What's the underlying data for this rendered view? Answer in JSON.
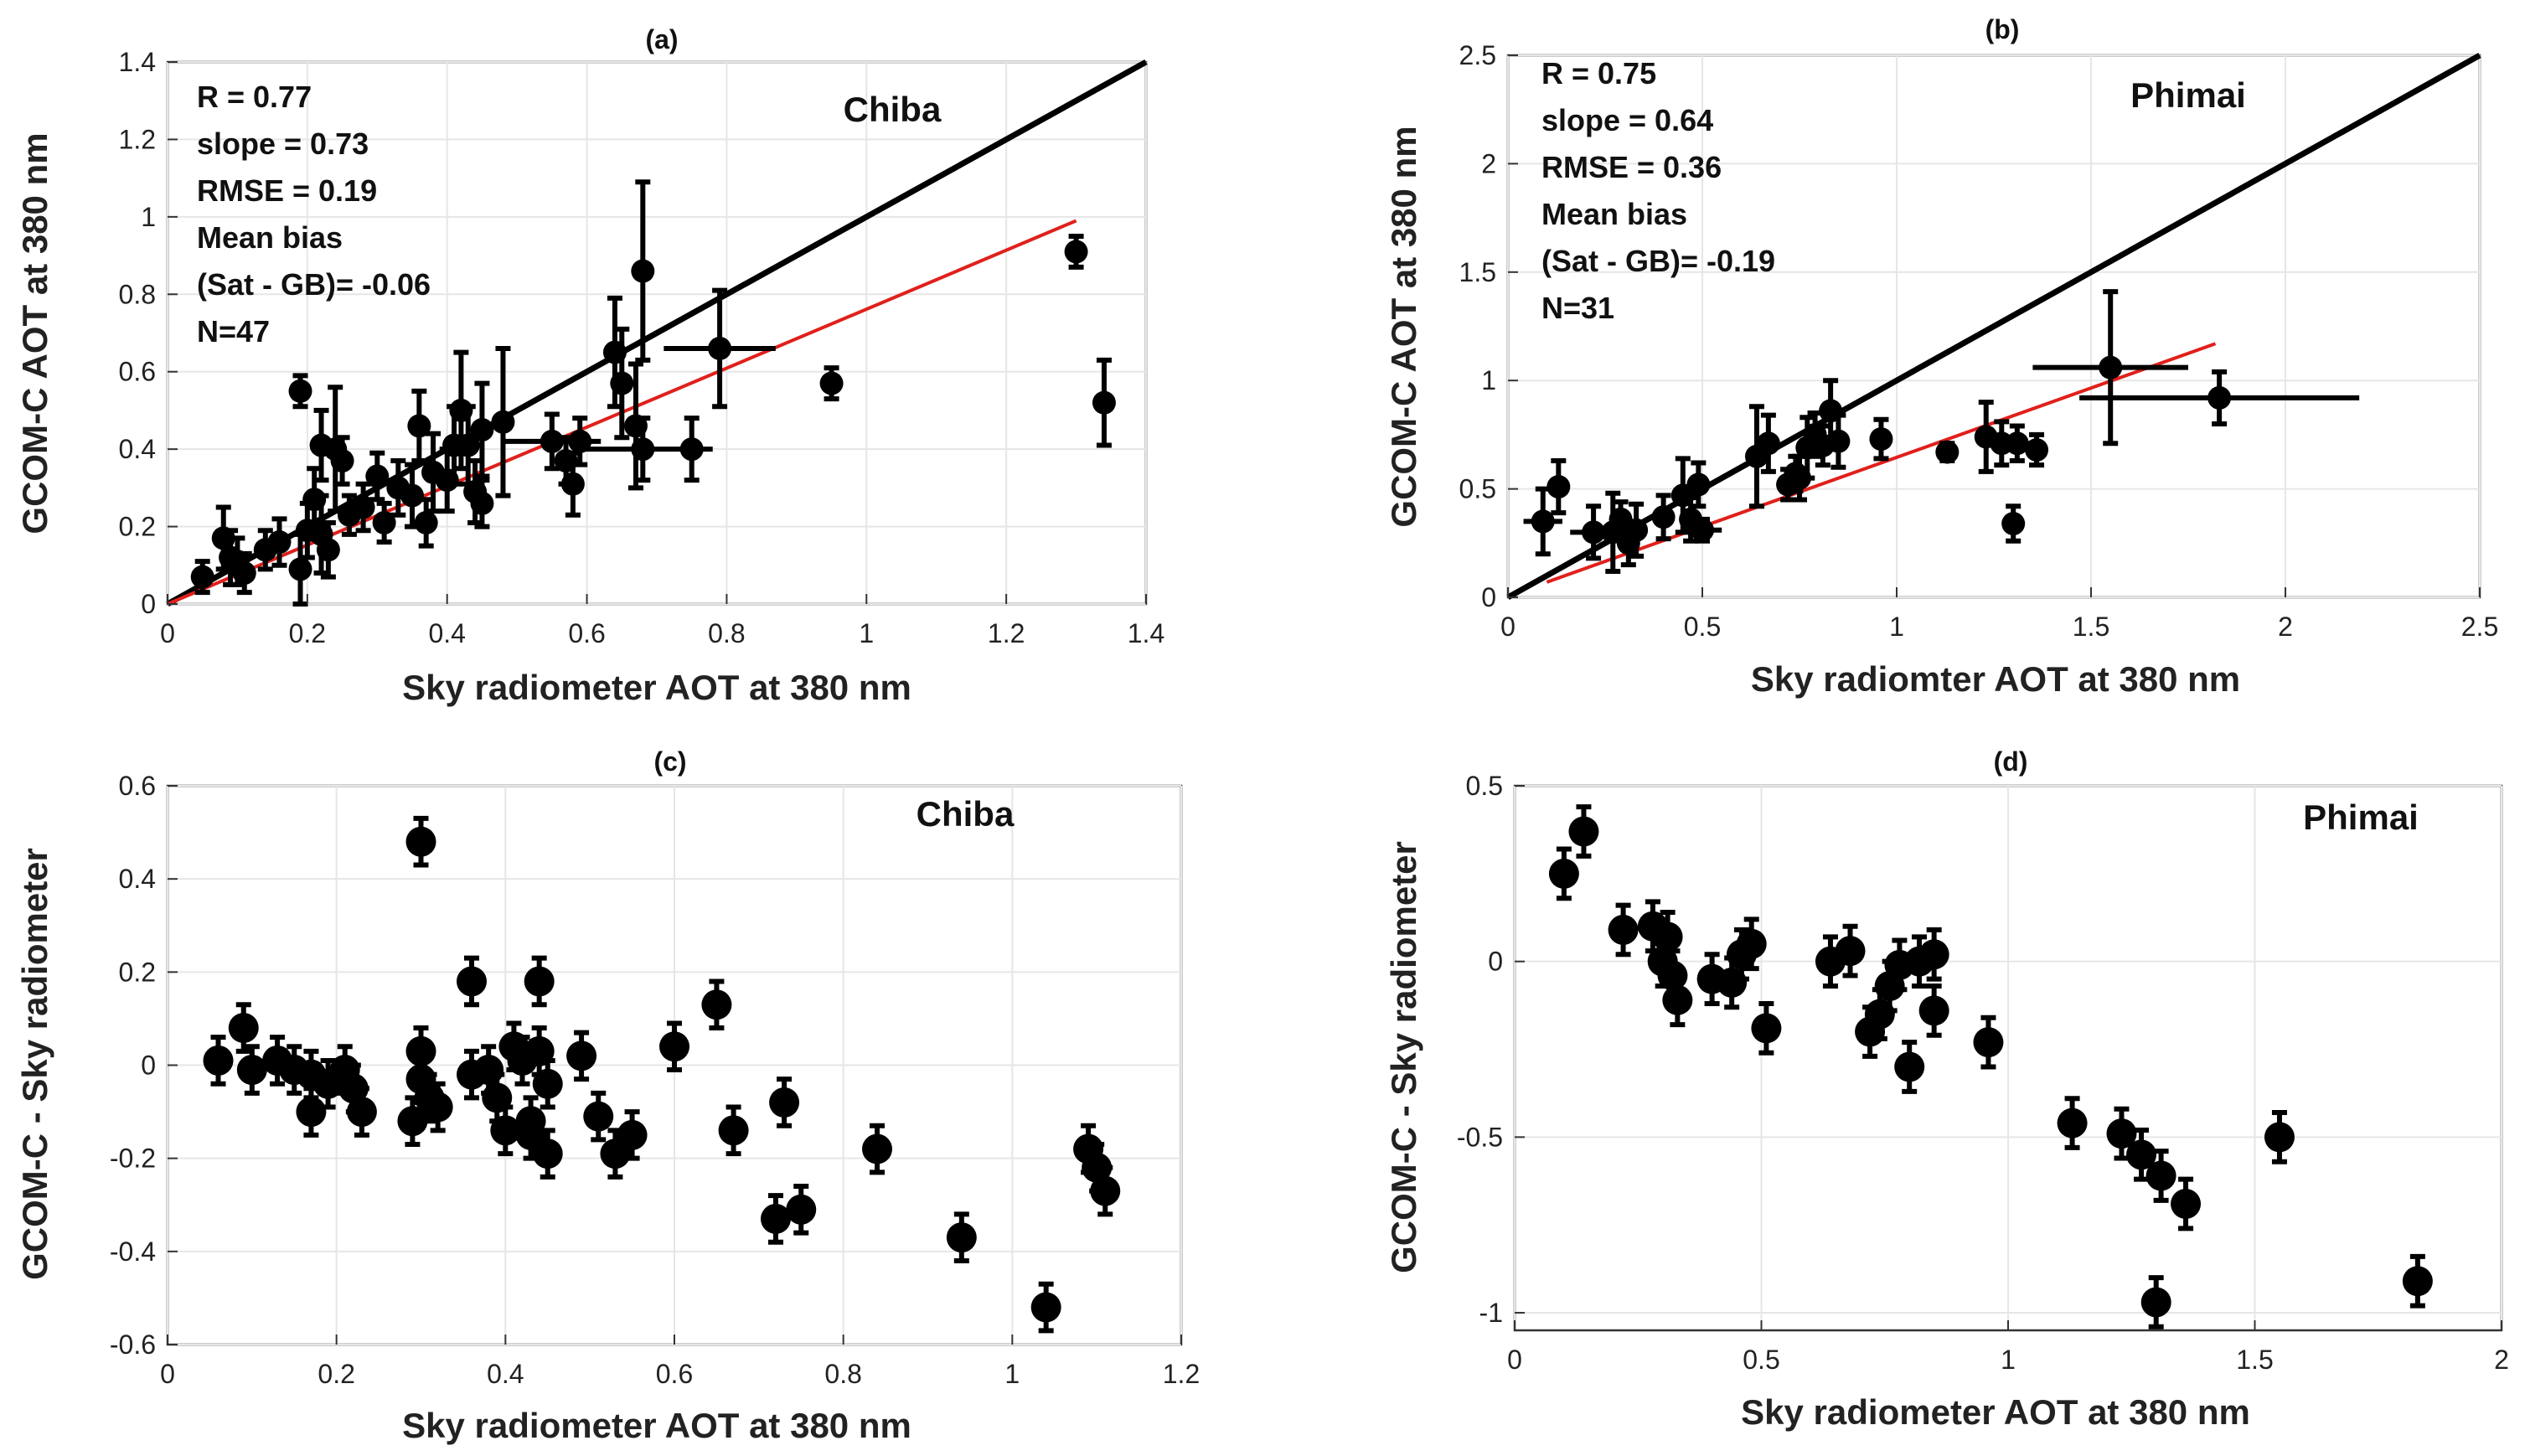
{
  "chart_data": [
    {
      "id": "a",
      "type": "scatter",
      "title": "(a)",
      "site": "Chiba",
      "xlabel": "Sky radiometer AOT at 380 nm",
      "ylabel": "GCOM-C AOT at 380 nm",
      "xlim": [
        0,
        1.4
      ],
      "ylim": [
        0,
        1.4
      ],
      "xticks": [
        0,
        0.2,
        0.4,
        0.6,
        0.8,
        1,
        1.2,
        1.4
      ],
      "yticks": [
        0,
        0.2,
        0.4,
        0.6,
        0.8,
        1,
        1.2,
        1.4
      ],
      "stats": [
        "R = 0.77",
        "slope = 0.73",
        "RMSE = 0.19",
        "Mean bias",
        "(Sat - GB)= -0.06",
        "N=47"
      ],
      "one_to_one": {
        "from": [
          0,
          0
        ],
        "to": [
          1.4,
          1.4
        ],
        "color": "#000000"
      },
      "fit_line": {
        "from": [
          0,
          0
        ],
        "to": [
          1.3,
          0.99
        ],
        "color": "#e0201b"
      },
      "points": [
        {
          "x": 0.05,
          "y": 0.07,
          "ey": 0.04
        },
        {
          "x": 0.08,
          "y": 0.17,
          "ey": 0.08
        },
        {
          "x": 0.1,
          "y": 0.11,
          "ey": 0.06
        },
        {
          "x": 0.11,
          "y": 0.08,
          "ey": 0.05
        },
        {
          "x": 0.14,
          "y": 0.14,
          "ey": 0.05
        },
        {
          "x": 0.16,
          "y": 0.16,
          "ey": 0.06
        },
        {
          "x": 0.19,
          "y": 0.55,
          "ey": 0.04
        },
        {
          "x": 0.19,
          "y": 0.09,
          "ey": 0.09
        },
        {
          "x": 0.2,
          "y": 0.19,
          "ey": 0.07
        },
        {
          "x": 0.21,
          "y": 0.27,
          "ey": 0.08
        },
        {
          "x": 0.22,
          "y": 0.41,
          "ey": 0.09
        },
        {
          "x": 0.23,
          "y": 0.14,
          "ey": 0.07
        },
        {
          "x": 0.24,
          "y": 0.4,
          "ey": 0.16
        },
        {
          "x": 0.25,
          "y": 0.37,
          "ey": 0.06
        },
        {
          "x": 0.26,
          "y": 0.23,
          "ey": 0.05
        },
        {
          "x": 0.28,
          "y": 0.25,
          "ey": 0.06
        },
        {
          "x": 0.31,
          "y": 0.21,
          "ey": 0.05
        },
        {
          "x": 0.33,
          "y": 0.3,
          "ey": 0.07
        },
        {
          "x": 0.35,
          "y": 0.28,
          "ey": 0.08
        },
        {
          "x": 0.36,
          "y": 0.46,
          "ey": 0.09
        },
        {
          "x": 0.37,
          "y": 0.21,
          "ey": 0.06
        },
        {
          "x": 0.38,
          "y": 0.34,
          "ey": 0.1
        },
        {
          "x": 0.4,
          "y": 0.32,
          "ey": 0.08
        },
        {
          "x": 0.41,
          "y": 0.41,
          "ey": 0.1
        },
        {
          "x": 0.42,
          "y": 0.5,
          "ey": 0.15
        },
        {
          "x": 0.43,
          "y": 0.41,
          "ey": 0.1
        },
        {
          "x": 0.44,
          "y": 0.29,
          "ey": 0.08
        },
        {
          "x": 0.45,
          "y": 0.26,
          "ey": 0.06
        },
        {
          "x": 0.45,
          "y": 0.45,
          "ey": 0.12
        },
        {
          "x": 0.48,
          "y": 0.47,
          "ey": 0.19
        },
        {
          "x": 0.55,
          "y": 0.42,
          "ey": 0.07,
          "ex": 0.07
        },
        {
          "x": 0.57,
          "y": 0.37,
          "ey": 0.06
        },
        {
          "x": 0.58,
          "y": 0.31,
          "ey": 0.08
        },
        {
          "x": 0.59,
          "y": 0.42,
          "ey": 0.06
        },
        {
          "x": 0.64,
          "y": 0.65,
          "ey": 0.14
        },
        {
          "x": 0.65,
          "y": 0.57,
          "ey": 0.14
        },
        {
          "x": 0.67,
          "y": 0.46,
          "ey": 0.16
        },
        {
          "x": 0.68,
          "y": 0.86,
          "ey": 0.23
        },
        {
          "x": 0.79,
          "y": 0.66,
          "ey": 0.15,
          "ex": 0.08
        },
        {
          "x": 0.75,
          "y": 0.4,
          "ey": 0.08
        },
        {
          "x": 0.95,
          "y": 0.57,
          "ey": 0.04
        },
        {
          "x": 1.3,
          "y": 0.91,
          "ey": 0.04
        },
        {
          "x": 1.34,
          "y": 0.52,
          "ey": 0.11
        },
        {
          "x": 0.68,
          "y": 0.4,
          "ey": 0.08,
          "ex": 0.1
        },
        {
          "x": 0.22,
          "y": 0.18,
          "ey": 0.1
        },
        {
          "x": 0.3,
          "y": 0.33,
          "ey": 0.06
        },
        {
          "x": 0.09,
          "y": 0.12,
          "ey": 0.07
        }
      ]
    },
    {
      "id": "b",
      "type": "scatter",
      "title": "(b)",
      "site": "Phimai",
      "xlabel": "Sky radiomter AOT at 380 nm",
      "ylabel": "GCOM-C AOT at 380 nm",
      "xlim": [
        0,
        2.5
      ],
      "ylim": [
        0,
        2.5
      ],
      "xticks": [
        0,
        0.5,
        1,
        1.5,
        2,
        2.5
      ],
      "yticks": [
        0,
        0.5,
        1,
        1.5,
        2,
        2.5
      ],
      "stats": [
        "R = 0.75",
        "slope = 0.64",
        "RMSE = 0.36",
        "Mean bias",
        "(Sat - GB)= -0.19",
        "N=31"
      ],
      "one_to_one": {
        "from": [
          0,
          0
        ],
        "to": [
          2.5,
          2.5
        ],
        "color": "#000000"
      },
      "fit_line": {
        "from": [
          0.1,
          0.07
        ],
        "to": [
          1.82,
          1.17
        ],
        "color": "#e0201b"
      },
      "points": [
        {
          "x": 0.09,
          "y": 0.35,
          "ey": 0.15,
          "ex": 0.05
        },
        {
          "x": 0.13,
          "y": 0.51,
          "ey": 0.12
        },
        {
          "x": 0.22,
          "y": 0.3,
          "ey": 0.12,
          "ex": 0.06
        },
        {
          "x": 0.27,
          "y": 0.3,
          "ey": 0.18
        },
        {
          "x": 0.29,
          "y": 0.36,
          "ey": 0.08
        },
        {
          "x": 0.31,
          "y": 0.25,
          "ey": 0.1
        },
        {
          "x": 0.33,
          "y": 0.31,
          "ey": 0.12
        },
        {
          "x": 0.4,
          "y": 0.37,
          "ey": 0.1
        },
        {
          "x": 0.45,
          "y": 0.47,
          "ey": 0.17
        },
        {
          "x": 0.47,
          "y": 0.36,
          "ey": 0.1
        },
        {
          "x": 0.49,
          "y": 0.52,
          "ey": 0.1
        },
        {
          "x": 0.5,
          "y": 0.31,
          "ey": 0.05,
          "ex": 0.05
        },
        {
          "x": 0.64,
          "y": 0.65,
          "ey": 0.23
        },
        {
          "x": 0.67,
          "y": 0.71,
          "ey": 0.13
        },
        {
          "x": 0.72,
          "y": 0.52,
          "ey": 0.07
        },
        {
          "x": 0.74,
          "y": 0.57,
          "ey": 0.08
        },
        {
          "x": 0.75,
          "y": 0.55,
          "ey": 0.1
        },
        {
          "x": 0.77,
          "y": 0.69,
          "ey": 0.14
        },
        {
          "x": 0.79,
          "y": 0.75,
          "ey": 0.1
        },
        {
          "x": 0.81,
          "y": 0.7,
          "ey": 0.09
        },
        {
          "x": 0.83,
          "y": 0.86,
          "ey": 0.14
        },
        {
          "x": 0.85,
          "y": 0.72,
          "ey": 0.12
        },
        {
          "x": 0.96,
          "y": 0.73,
          "ey": 0.09
        },
        {
          "x": 1.13,
          "y": 0.67,
          "ey": 0.04
        },
        {
          "x": 1.23,
          "y": 0.74,
          "ey": 0.16
        },
        {
          "x": 1.27,
          "y": 0.71,
          "ey": 0.1
        },
        {
          "x": 1.3,
          "y": 0.34,
          "ey": 0.08
        },
        {
          "x": 1.31,
          "y": 0.71,
          "ey": 0.08
        },
        {
          "x": 1.36,
          "y": 0.68,
          "ey": 0.07
        },
        {
          "x": 1.55,
          "y": 1.06,
          "ey": 0.35,
          "ex": 0.2
        },
        {
          "x": 1.83,
          "y": 0.92,
          "ey": 0.12,
          "ex": 0.36
        }
      ]
    },
    {
      "id": "c",
      "type": "scatter",
      "title": "(c)",
      "site": "Chiba",
      "xlabel": "Sky radiometer AOT at 380 nm",
      "ylabel": "GCOM-C - Sky radiometer",
      "xlim": [
        0,
        1.2
      ],
      "ylim": [
        -0.6,
        0.6
      ],
      "xticks": [
        0,
        0.2,
        0.4,
        0.6,
        0.8,
        1,
        1.2
      ],
      "yticks": [
        -0.6,
        -0.4,
        -0.2,
        0,
        0.2,
        0.4,
        0.6
      ],
      "points": [
        {
          "x": 0.06,
          "y": 0.01
        },
        {
          "x": 0.09,
          "y": 0.08
        },
        {
          "x": 0.1,
          "y": -0.01
        },
        {
          "x": 0.13,
          "y": 0.01
        },
        {
          "x": 0.15,
          "y": -0.01
        },
        {
          "x": 0.17,
          "y": -0.02
        },
        {
          "x": 0.17,
          "y": -0.1
        },
        {
          "x": 0.19,
          "y": -0.04
        },
        {
          "x": 0.21,
          "y": -0.01
        },
        {
          "x": 0.22,
          "y": -0.05
        },
        {
          "x": 0.23,
          "y": -0.1
        },
        {
          "x": 0.29,
          "y": -0.12
        },
        {
          "x": 0.3,
          "y": 0.03
        },
        {
          "x": 0.3,
          "y": -0.03
        },
        {
          "x": 0.3,
          "y": 0.48
        },
        {
          "x": 0.31,
          "y": -0.07
        },
        {
          "x": 0.32,
          "y": -0.09
        },
        {
          "x": 0.36,
          "y": 0.18
        },
        {
          "x": 0.36,
          "y": -0.02
        },
        {
          "x": 0.38,
          "y": -0.01
        },
        {
          "x": 0.39,
          "y": -0.07
        },
        {
          "x": 0.4,
          "y": -0.14
        },
        {
          "x": 0.41,
          "y": 0.04
        },
        {
          "x": 0.42,
          "y": 0.01
        },
        {
          "x": 0.43,
          "y": -0.15
        },
        {
          "x": 0.43,
          "y": -0.12
        },
        {
          "x": 0.44,
          "y": 0.18
        },
        {
          "x": 0.44,
          "y": 0.03
        },
        {
          "x": 0.45,
          "y": -0.04
        },
        {
          "x": 0.45,
          "y": -0.19
        },
        {
          "x": 0.49,
          "y": 0.02
        },
        {
          "x": 0.51,
          "y": -0.11
        },
        {
          "x": 0.53,
          "y": -0.19
        },
        {
          "x": 0.55,
          "y": -0.15
        },
        {
          "x": 0.6,
          "y": 0.04
        },
        {
          "x": 0.65,
          "y": 0.13
        },
        {
          "x": 0.67,
          "y": -0.14
        },
        {
          "x": 0.72,
          "y": -0.33
        },
        {
          "x": 0.73,
          "y": -0.08
        },
        {
          "x": 0.75,
          "y": -0.31
        },
        {
          "x": 0.84,
          "y": -0.18
        },
        {
          "x": 0.94,
          "y": -0.37
        },
        {
          "x": 1.04,
          "y": -0.52
        },
        {
          "x": 1.09,
          "y": -0.18
        },
        {
          "x": 1.1,
          "y": -0.22
        },
        {
          "x": 1.11,
          "y": -0.27
        }
      ],
      "ey": 0.05
    },
    {
      "id": "d",
      "type": "scatter",
      "title": "(d)",
      "site": "Phimai",
      "xlabel": "Sky radiometer AOT at 380 nm",
      "ylabel": "GCOM-C - Sky radiometer",
      "xlim": [
        0,
        2
      ],
      "ylim": [
        -1.05,
        0.5
      ],
      "xticks": [
        0,
        0.5,
        1,
        1.5,
        2
      ],
      "yticks": [
        -1,
        -0.5,
        0,
        0.5
      ],
      "points": [
        {
          "x": 0.1,
          "y": 0.25
        },
        {
          "x": 0.14,
          "y": 0.37
        },
        {
          "x": 0.22,
          "y": 0.09
        },
        {
          "x": 0.28,
          "y": 0.1
        },
        {
          "x": 0.3,
          "y": 0.0
        },
        {
          "x": 0.31,
          "y": 0.07
        },
        {
          "x": 0.32,
          "y": -0.04
        },
        {
          "x": 0.33,
          "y": -0.11
        },
        {
          "x": 0.4,
          "y": -0.05
        },
        {
          "x": 0.44,
          "y": -0.06
        },
        {
          "x": 0.46,
          "y": 0.02
        },
        {
          "x": 0.48,
          "y": 0.05
        },
        {
          "x": 0.51,
          "y": -0.19
        },
        {
          "x": 0.64,
          "y": 0.0
        },
        {
          "x": 0.68,
          "y": 0.03
        },
        {
          "x": 0.72,
          "y": -0.2
        },
        {
          "x": 0.74,
          "y": -0.15
        },
        {
          "x": 0.76,
          "y": -0.07
        },
        {
          "x": 0.78,
          "y": -0.01
        },
        {
          "x": 0.8,
          "y": -0.3
        },
        {
          "x": 0.82,
          "y": 0.0
        },
        {
          "x": 0.85,
          "y": 0.02
        },
        {
          "x": 0.85,
          "y": -0.14
        },
        {
          "x": 0.96,
          "y": -0.23
        },
        {
          "x": 1.13,
          "y": -0.46
        },
        {
          "x": 1.23,
          "y": -0.49
        },
        {
          "x": 1.27,
          "y": -0.55
        },
        {
          "x": 1.3,
          "y": -0.97
        },
        {
          "x": 1.31,
          "y": -0.61
        },
        {
          "x": 1.36,
          "y": -0.69
        },
        {
          "x": 1.55,
          "y": -0.5
        },
        {
          "x": 1.83,
          "y": -0.91
        }
      ],
      "ey": 0.07
    }
  ]
}
